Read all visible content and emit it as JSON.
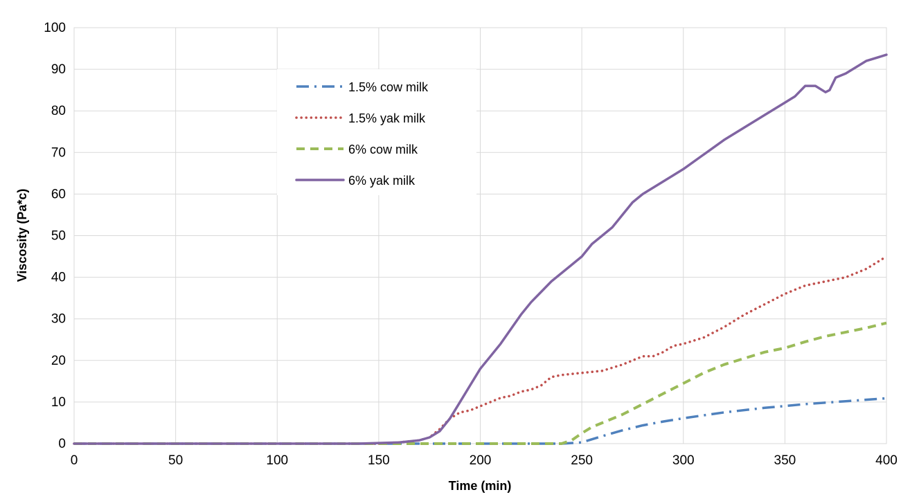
{
  "chart_data": {
    "type": "line",
    "xlabel": "Time (min)",
    "ylabel": "Viscosity  (Pa*c)",
    "xlim": [
      0,
      400
    ],
    "ylim": [
      0,
      100
    ],
    "xticks": [
      0,
      50,
      100,
      150,
      200,
      250,
      300,
      350,
      400
    ],
    "yticks": [
      0,
      10,
      20,
      30,
      40,
      50,
      60,
      70,
      80,
      90,
      100
    ],
    "grid": true,
    "legend_position": "top-left inside plot",
    "series": [
      {
        "name": "1.5% cow milk",
        "color": "#4f81bd",
        "style": "dash-dot",
        "points": [
          [
            0,
            0
          ],
          [
            100,
            0
          ],
          [
            200,
            0
          ],
          [
            240,
            0
          ],
          [
            250,
            0.3
          ],
          [
            260,
            1.8
          ],
          [
            270,
            3.2
          ],
          [
            280,
            4.4
          ],
          [
            290,
            5.3
          ],
          [
            300,
            6.1
          ],
          [
            320,
            7.5
          ],
          [
            340,
            8.6
          ],
          [
            360,
            9.5
          ],
          [
            380,
            10.2
          ],
          [
            400,
            10.9
          ]
        ]
      },
      {
        "name": "1.5% yak milk",
        "color": "#c0504d",
        "style": "dotted",
        "points": [
          [
            0,
            0
          ],
          [
            150,
            0
          ],
          [
            160,
            0.3
          ],
          [
            170,
            0.8
          ],
          [
            175,
            1.5
          ],
          [
            180,
            3.5
          ],
          [
            185,
            6
          ],
          [
            190,
            7.5
          ],
          [
            195,
            8
          ],
          [
            200,
            9
          ],
          [
            205,
            10
          ],
          [
            210,
            11
          ],
          [
            215,
            11.5
          ],
          [
            220,
            12.5
          ],
          [
            225,
            13
          ],
          [
            230,
            14
          ],
          [
            235,
            16
          ],
          [
            240,
            16.5
          ],
          [
            250,
            17
          ],
          [
            260,
            17.5
          ],
          [
            270,
            19
          ],
          [
            280,
            21
          ],
          [
            285,
            21
          ],
          [
            290,
            22
          ],
          [
            295,
            23.5
          ],
          [
            300,
            24
          ],
          [
            310,
            25.5
          ],
          [
            320,
            28
          ],
          [
            330,
            31
          ],
          [
            340,
            33.5
          ],
          [
            350,
            36
          ],
          [
            360,
            38
          ],
          [
            370,
            39
          ],
          [
            380,
            40
          ],
          [
            390,
            42
          ],
          [
            400,
            45
          ]
        ]
      },
      {
        "name": "6% cow milk",
        "color": "#9bbb59",
        "style": "dashed",
        "points": [
          [
            0,
            0
          ],
          [
            150,
            0
          ],
          [
            200,
            0
          ],
          [
            240,
            0
          ],
          [
            245,
            0.8
          ],
          [
            250,
            2.5
          ],
          [
            255,
            4
          ],
          [
            260,
            5
          ],
          [
            270,
            7
          ],
          [
            280,
            9.5
          ],
          [
            290,
            12
          ],
          [
            300,
            14.5
          ],
          [
            310,
            17
          ],
          [
            320,
            19
          ],
          [
            330,
            20.5
          ],
          [
            340,
            22
          ],
          [
            350,
            23
          ],
          [
            360,
            24.5
          ],
          [
            370,
            25.8
          ],
          [
            380,
            26.8
          ],
          [
            390,
            27.8
          ],
          [
            400,
            29
          ]
        ]
      },
      {
        "name": "6% yak milk",
        "color": "#8064a2",
        "style": "solid",
        "points": [
          [
            0,
            0
          ],
          [
            140,
            0
          ],
          [
            160,
            0.3
          ],
          [
            170,
            0.8
          ],
          [
            175,
            1.5
          ],
          [
            180,
            3
          ],
          [
            185,
            6
          ],
          [
            190,
            10
          ],
          [
            195,
            14
          ],
          [
            200,
            18
          ],
          [
            205,
            21
          ],
          [
            210,
            24
          ],
          [
            215,
            27.5
          ],
          [
            220,
            31
          ],
          [
            225,
            34
          ],
          [
            230,
            36.5
          ],
          [
            235,
            39
          ],
          [
            240,
            41
          ],
          [
            245,
            43
          ],
          [
            250,
            45
          ],
          [
            255,
            48
          ],
          [
            260,
            50
          ],
          [
            265,
            52
          ],
          [
            270,
            55
          ],
          [
            275,
            58
          ],
          [
            280,
            60
          ],
          [
            290,
            63
          ],
          [
            300,
            66
          ],
          [
            310,
            69.5
          ],
          [
            320,
            73
          ],
          [
            330,
            76
          ],
          [
            340,
            79
          ],
          [
            350,
            82
          ],
          [
            355,
            83.5
          ],
          [
            360,
            86
          ],
          [
            365,
            86
          ],
          [
            370,
            84.5
          ],
          [
            372,
            85
          ],
          [
            375,
            88
          ],
          [
            380,
            89
          ],
          [
            390,
            92
          ],
          [
            400,
            93.5
          ]
        ]
      }
    ]
  }
}
